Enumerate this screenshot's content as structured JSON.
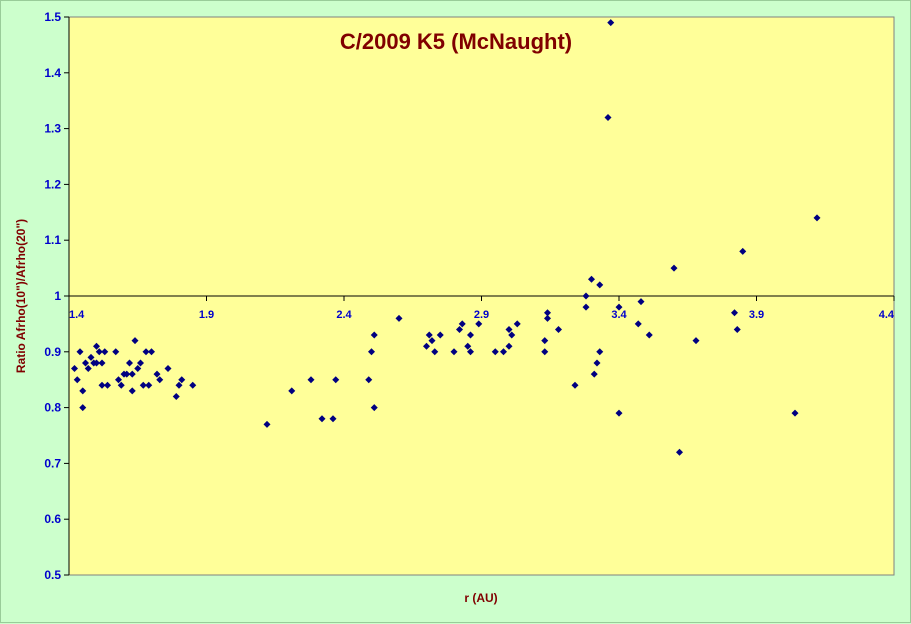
{
  "chart_data": {
    "type": "scatter",
    "title": "C/2009 K5 (McNaught)",
    "xlabel": "r (AU)",
    "ylabel": "Ratio Afrho(10\")/Afrho(20\")",
    "xlim": [
      1.4,
      4.4
    ],
    "ylim": [
      0.5,
      1.5
    ],
    "x_crosses_y_at": 1.0,
    "x_ticks": [
      "1.4",
      "1.9",
      "2.4",
      "2.9",
      "3.4",
      "3.9",
      "4.4"
    ],
    "y_ticks": [
      "0.5",
      "0.6",
      "0.7",
      "0.8",
      "0.9",
      "1",
      "1.1",
      "1.2",
      "1.3",
      "1.4",
      "1.5"
    ],
    "grid": false,
    "colors": {
      "plot_bg": "#ffff99",
      "chart_bg": "#ccffcc",
      "marker": "#000080",
      "title": "#800000",
      "ticks": "#0000cc"
    },
    "series": [
      {
        "marker": "diamond",
        "points": [
          [
            1.42,
            0.87
          ],
          [
            1.43,
            0.85
          ],
          [
            1.44,
            0.9
          ],
          [
            1.45,
            0.83
          ],
          [
            1.45,
            0.8
          ],
          [
            1.46,
            0.88
          ],
          [
            1.47,
            0.87
          ],
          [
            1.48,
            0.89
          ],
          [
            1.49,
            0.88
          ],
          [
            1.5,
            0.91
          ],
          [
            1.5,
            0.88
          ],
          [
            1.51,
            0.9
          ],
          [
            1.52,
            0.84
          ],
          [
            1.52,
            0.88
          ],
          [
            1.53,
            0.9
          ],
          [
            1.54,
            0.84
          ],
          [
            1.57,
            0.9
          ],
          [
            1.58,
            0.85
          ],
          [
            1.59,
            0.84
          ],
          [
            1.6,
            0.86
          ],
          [
            1.61,
            0.86
          ],
          [
            1.62,
            0.88
          ],
          [
            1.63,
            0.86
          ],
          [
            1.63,
            0.83
          ],
          [
            1.64,
            0.92
          ],
          [
            1.65,
            0.87
          ],
          [
            1.66,
            0.88
          ],
          [
            1.67,
            0.84
          ],
          [
            1.68,
            0.9
          ],
          [
            1.69,
            0.84
          ],
          [
            1.7,
            0.9
          ],
          [
            1.72,
            0.86
          ],
          [
            1.73,
            0.85
          ],
          [
            1.76,
            0.87
          ],
          [
            1.79,
            0.82
          ],
          [
            1.8,
            0.84
          ],
          [
            1.81,
            0.85
          ],
          [
            1.85,
            0.84
          ],
          [
            2.12,
            0.77
          ],
          [
            2.21,
            0.83
          ],
          [
            2.28,
            0.85
          ],
          [
            2.32,
            0.78
          ],
          [
            2.36,
            0.78
          ],
          [
            2.37,
            0.85
          ],
          [
            2.49,
            0.85
          ],
          [
            2.5,
            0.9
          ],
          [
            2.51,
            0.93
          ],
          [
            2.51,
            0.8
          ],
          [
            2.6,
            0.96
          ],
          [
            2.7,
            0.91
          ],
          [
            2.71,
            0.93
          ],
          [
            2.72,
            0.92
          ],
          [
            2.73,
            0.9
          ],
          [
            2.75,
            0.93
          ],
          [
            2.8,
            0.9
          ],
          [
            2.82,
            0.94
          ],
          [
            2.83,
            0.95
          ],
          [
            2.85,
            0.91
          ],
          [
            2.86,
            0.9
          ],
          [
            2.86,
            0.93
          ],
          [
            2.89,
            0.95
          ],
          [
            2.95,
            0.9
          ],
          [
            2.98,
            0.9
          ],
          [
            3.0,
            0.94
          ],
          [
            3.0,
            0.91
          ],
          [
            3.01,
            0.93
          ],
          [
            3.03,
            0.95
          ],
          [
            3.13,
            0.92
          ],
          [
            3.13,
            0.9
          ],
          [
            3.14,
            0.97
          ],
          [
            3.14,
            0.96
          ],
          [
            3.18,
            0.94
          ],
          [
            3.24,
            0.84
          ],
          [
            3.28,
            1.0
          ],
          [
            3.28,
            0.98
          ],
          [
            3.3,
            1.03
          ],
          [
            3.31,
            0.86
          ],
          [
            3.32,
            0.88
          ],
          [
            3.33,
            1.02
          ],
          [
            3.33,
            0.9
          ],
          [
            3.36,
            1.32
          ],
          [
            3.37,
            1.49
          ],
          [
            3.4,
            0.98
          ],
          [
            3.4,
            0.79
          ],
          [
            3.47,
            0.95
          ],
          [
            3.48,
            0.99
          ],
          [
            3.51,
            0.93
          ],
          [
            3.6,
            1.05
          ],
          [
            3.62,
            0.72
          ],
          [
            3.68,
            0.92
          ],
          [
            3.82,
            0.97
          ],
          [
            3.83,
            0.94
          ],
          [
            3.85,
            1.08
          ],
          [
            4.04,
            0.79
          ],
          [
            4.12,
            1.14
          ]
        ]
      }
    ]
  }
}
